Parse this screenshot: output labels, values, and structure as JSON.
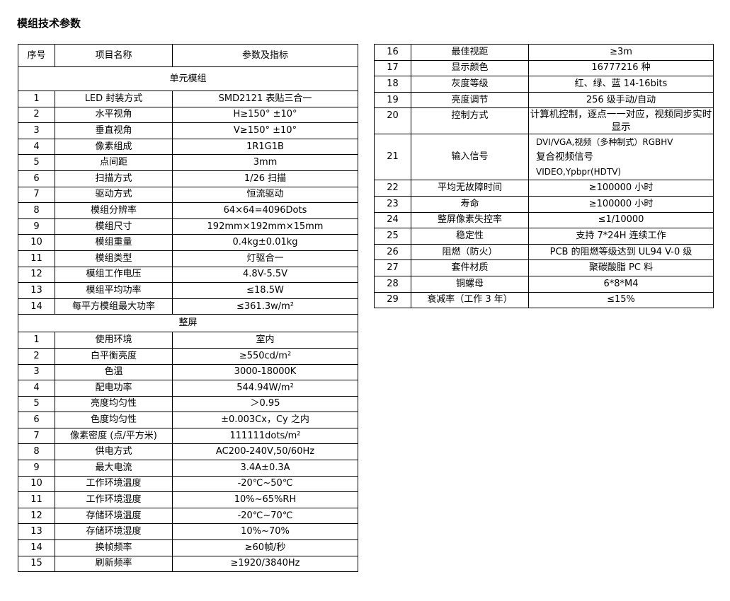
{
  "title": "模组技术参数",
  "headers": [
    "序号",
    "项目名称",
    "参数及指标"
  ],
  "section_module": "单元模组",
  "module_rows": [
    [
      "1",
      "LED 封装方式",
      "SMD2121 表贴三合一"
    ],
    [
      "2",
      "水平视角",
      "H≥150° ±10°"
    ],
    [
      "3",
      "垂直视角",
      "V≥150° ±10°"
    ],
    [
      "4",
      "像素组成",
      "1R1G1B"
    ],
    [
      "5",
      "点间距",
      "3mm"
    ],
    [
      "6",
      "扫描方式",
      "1/26 扫描"
    ],
    [
      "7",
      "驱动方式",
      "恒流驱动"
    ],
    [
      "8",
      "模组分辨率",
      "64×64=4096Dots"
    ],
    [
      "9",
      "模组尺寸",
      "192mm×192mm×15mm"
    ],
    [
      "10",
      "模组重量",
      "0.4kg±0.01kg"
    ],
    [
      "11",
      "模组类型",
      "灯驱合一"
    ],
    [
      "12",
      "模组工作电压",
      "4.8V-5.5V"
    ],
    [
      "13",
      "模组平均功率",
      "≤18.5W"
    ],
    [
      "14",
      "每平方模组最大功率",
      "≤361.3w/m²"
    ]
  ],
  "section_screen": "整屏",
  "screen_rows": [
    [
      "1",
      "使用环境",
      "室内"
    ],
    [
      "2",
      "白平衡亮度",
      "≥550cd/m²"
    ],
    [
      "3",
      "色温",
      "3000-18000K"
    ],
    [
      "4",
      "配电功率",
      "544.94W/m²"
    ],
    [
      "5",
      "亮度均匀性",
      "＞0.95"
    ],
    [
      "6",
      "色度均匀性",
      "±0.003Cx，Cy 之内"
    ],
    [
      "7",
      "像素密度 (点/平方米)",
      "111111dots/m²"
    ],
    [
      "8",
      "供电方式",
      "AC200-240V,50/60Hz"
    ],
    [
      "9",
      "最大电流",
      "3.4A±0.3A"
    ],
    [
      "10",
      "工作环境温度",
      "-20℃~50℃"
    ],
    [
      "11",
      "工作环境湿度",
      "10%~65%RH"
    ],
    [
      "12",
      "存储环境温度",
      "-20℃~70℃"
    ],
    [
      "13",
      "存储环境湿度",
      "10%~70%"
    ],
    [
      "14",
      "换帧频率",
      "≥60帧/秒"
    ],
    [
      "15",
      "刷新频率",
      "≥1920/3840Hz"
    ]
  ],
  "right_rows_a": [
    [
      "16",
      "最佳视距",
      "≥3m"
    ],
    [
      "17",
      "显示颜色",
      "16777216 种"
    ],
    [
      "18",
      "灰度等级",
      "红、绿、蓝 14-16bits"
    ],
    [
      "19",
      "亮度调节",
      "256 级手动/自动"
    ],
    [
      "20",
      "控制方式",
      "计算机控制，逐点一一对应，视频同步实时显示"
    ]
  ],
  "row21": {
    "no": "21",
    "name": "输入信号",
    "lines": [
      "DVI/VGA,视频（多种制式）RGBHV",
      "复合视频信号",
      "VIDEO,Ypbpr(HDTV)"
    ]
  },
  "right_rows_b": [
    [
      "22",
      "平均无故障时间",
      "≥100000 小时"
    ],
    [
      "23",
      "寿命",
      "≥100000 小时"
    ],
    [
      "24",
      "整屏像素失控率",
      "≤1/10000"
    ],
    [
      "25",
      "稳定性",
      "支持 7*24H 连续工作"
    ],
    [
      "26",
      "阻燃（防火）",
      "PCB 的阻燃等级达到 UL94 V-0 级"
    ],
    [
      "27",
      "套件材质",
      "聚碳酸脂 PC 料"
    ],
    [
      "28",
      "铜螺母",
      "6*8*M4"
    ],
    [
      "29",
      "衰减率（工作 3 年）",
      "≤15%"
    ]
  ]
}
